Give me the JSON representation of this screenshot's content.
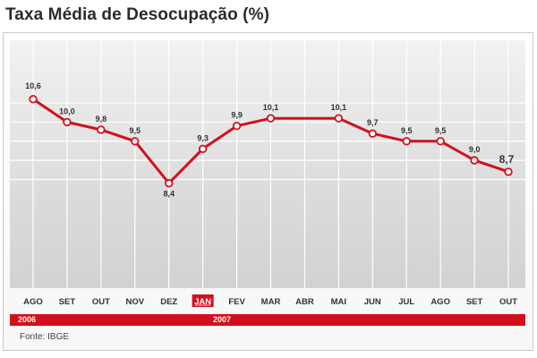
{
  "title": "Taxa Média de Desocupação (%)",
  "source": "Fonte: IBGE",
  "years": {
    "first": "2006",
    "second": "2007"
  },
  "chart_data": {
    "type": "line",
    "title": "Taxa Média de Desocupação (%)",
    "categories": [
      "AGO",
      "SET",
      "OUT",
      "NOV",
      "DEZ",
      "JAN",
      "FEV",
      "MAR",
      "ABR",
      "MAI",
      "JUN",
      "JUL",
      "AGO",
      "SET",
      "OUT"
    ],
    "series": [
      {
        "values": [
          10.6,
          10.0,
          9.8,
          9.5,
          8.4,
          9.3,
          9.9,
          10.1,
          10.1,
          10.1,
          9.7,
          9.5,
          9.5,
          9.0,
          8.7
        ],
        "labels": [
          "10,6",
          "10,0",
          "9,8",
          "9,5",
          "8,4",
          "9,3",
          "9,9",
          "10,1",
          "",
          "10,1",
          "9,7",
          "9,5",
          "9,5",
          "9,0",
          "8,7"
        ]
      }
    ],
    "highlight_category": "JAN",
    "line_color": "#d2101d",
    "ylim": [
      8.0,
      11.0
    ],
    "grid": true
  }
}
